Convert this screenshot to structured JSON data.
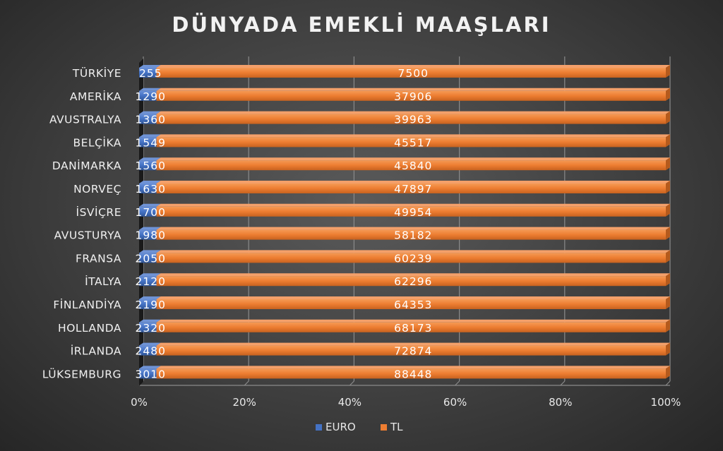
{
  "chart_data": {
    "type": "bar",
    "orientation": "horizontal",
    "stacked": "percent",
    "title": "DÜNYADA EMEKLİ MAAŞLARI",
    "categories": [
      "TÜRKİYE",
      "AMERİKA",
      "AVUSTRALYA",
      "BELÇİKA",
      "DANİMARKA",
      "NORVEÇ",
      "İSVİÇRE",
      "AVUSTURYA",
      "FRANSA",
      "İTALYA",
      "FİNLANDİYA",
      "HOLLANDA",
      "İRLANDA",
      "LÜKSEMBURG"
    ],
    "series": [
      {
        "name": "EURO",
        "color": "#4472C4",
        "values": [
          255,
          1290,
          1360,
          1549,
          1560,
          1630,
          1700,
          1980,
          2050,
          2120,
          2190,
          2320,
          2480,
          3010
        ]
      },
      {
        "name": "TL",
        "color": "#ED7D31",
        "values": [
          7500,
          37906,
          39963,
          45517,
          45840,
          47897,
          49954,
          58182,
          60239,
          62296,
          64353,
          68173,
          72874,
          88448
        ]
      }
    ],
    "x_ticks": [
      "0%",
      "20%",
      "40%",
      "60%",
      "80%",
      "100%"
    ],
    "xlim": [
      0,
      100
    ],
    "grid": true,
    "legend": "bottom"
  }
}
